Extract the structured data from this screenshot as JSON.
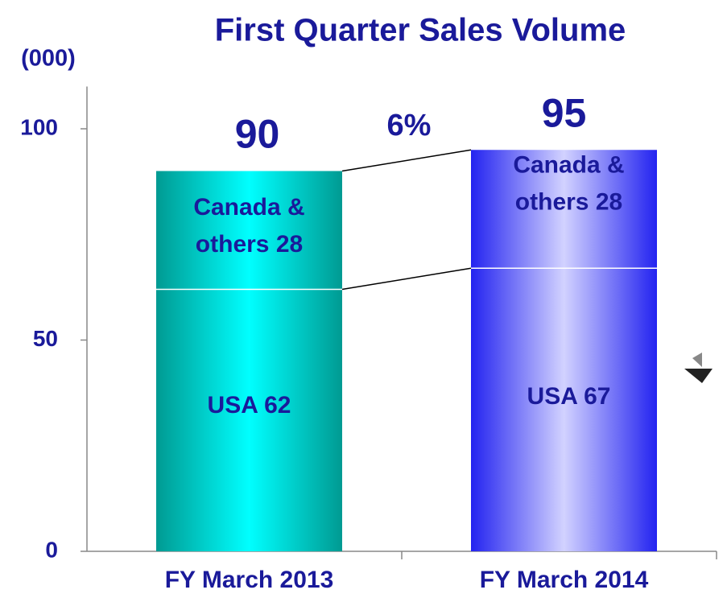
{
  "chart_data": {
    "type": "stacked-bar",
    "title": "First Quarter Sales Volume",
    "y_label": "(000)",
    "categories": [
      "FY March 2013",
      "FY March 2014"
    ],
    "series": [
      {
        "name": "USA",
        "values": [
          62,
          67
        ],
        "value_labels": [
          [
            "USA 62"
          ],
          [
            "USA 67"
          ]
        ]
      },
      {
        "name": "Canada & others",
        "values": [
          28,
          28
        ],
        "value_labels": [
          [
            "Canada &",
            "others 28"
          ],
          [
            "Canada &",
            "others 28"
          ]
        ]
      }
    ],
    "totals": [
      90,
      95
    ],
    "annotation": "6%",
    "colors": [
      [
        "#009a92",
        "#00ffff"
      ],
      [
        "#2323f0",
        "#d2d2ff"
      ]
    ],
    "ylim": [
      0,
      110
    ],
    "yticks": [
      0,
      50,
      100
    ]
  }
}
